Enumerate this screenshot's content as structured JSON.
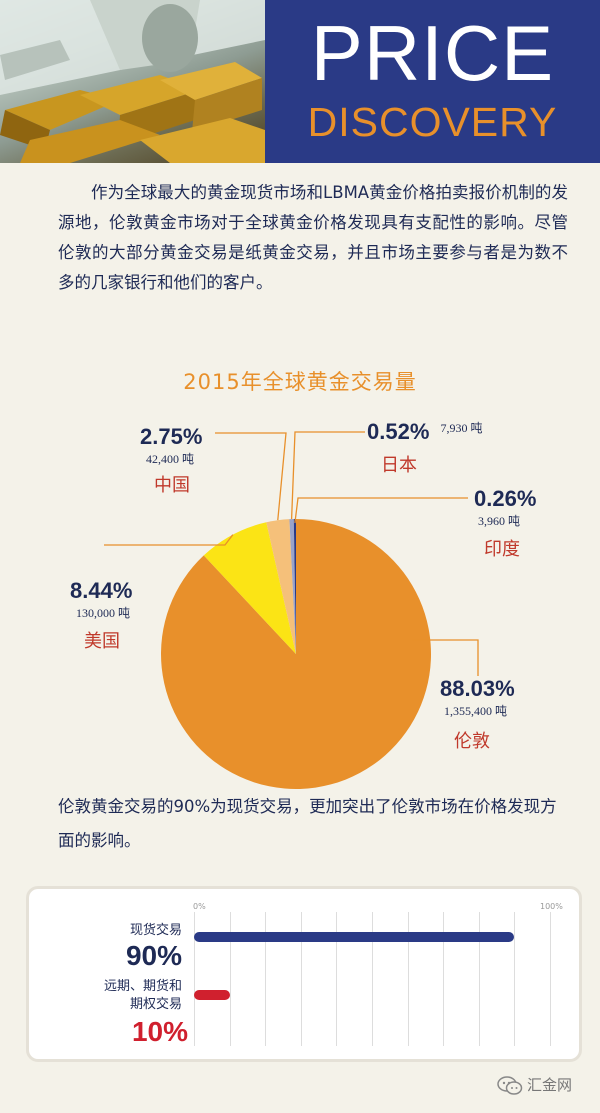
{
  "header": {
    "title_line1": "PRICE",
    "title_line2": "DISCOVERY",
    "photo_icon": "gold-bars-and-dollar-notes-photo"
  },
  "intro": "作为全球最大的黄金现货市场和LBMA黄金价格拍卖报价机制的发源地，伦敦黄金市场对于全球黄金价格发现具有支配性的影响。尽管伦敦的大部分黄金交易是纸黄金交易，并且市场主要参与者是为数不多的几家银行和他们的客户。",
  "chart_data": [
    {
      "type": "pie",
      "title": "2015年全球黄金交易量",
      "slices": [
        {
          "name": "伦敦",
          "percent": 88.03,
          "value_label": "1,355,400 吨",
          "color": "#e8902b"
        },
        {
          "name": "美国",
          "percent": 8.44,
          "value_label": "130,000 吨",
          "color": "#fbe415"
        },
        {
          "name": "中国",
          "percent": 2.75,
          "value_label": "42,400 吨",
          "color": "#f5c07a"
        },
        {
          "name": "日本",
          "percent": 0.52,
          "value_label": "7,930 吨",
          "color": "#9aa3c8"
        },
        {
          "name": "印度",
          "percent": 0.26,
          "value_label": "3,960 吨",
          "color": "#2a3a86"
        }
      ]
    },
    {
      "type": "bar",
      "orientation": "horizontal",
      "axis_min_label": "0%",
      "axis_max_label": "100%",
      "xlim": [
        0,
        100
      ],
      "categories": [
        {
          "label": "现货交易",
          "value": 90,
          "value_label": "90%",
          "color": "#2a3a86"
        },
        {
          "label_line1": "远期、期货和",
          "label_line2": "期权交易",
          "value": 10,
          "value_label": "10%",
          "color": "#d0202e"
        }
      ]
    }
  ],
  "caption": "伦敦黄金交易的90%为现货交易，更加突出了伦敦市场在价格发现方面的影响。",
  "footer": {
    "brand": "汇金网",
    "icon": "wechat-icon"
  },
  "colors": {
    "navy": "#2a3a86",
    "orange": "#e8902b",
    "label_red": "#c0392b",
    "line": "#e8902b"
  }
}
